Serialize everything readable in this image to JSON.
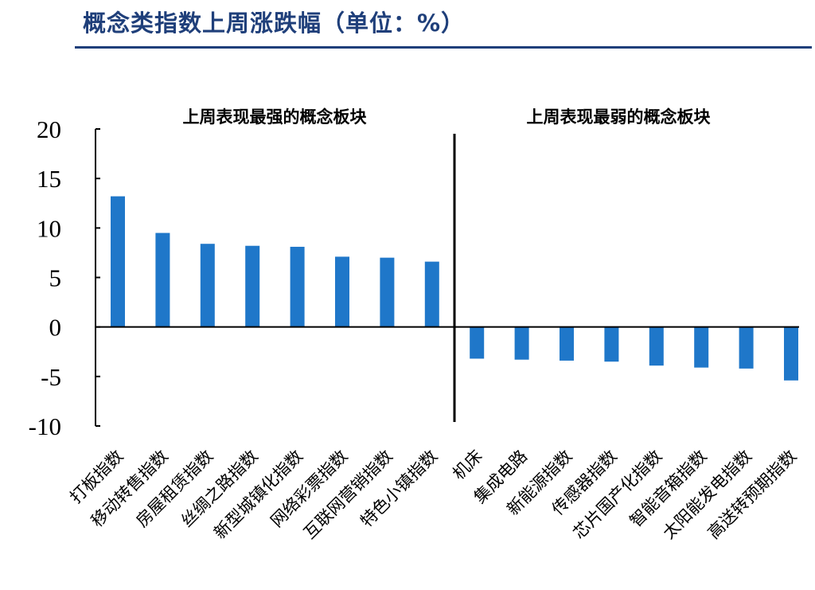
{
  "header": {
    "title": "概念类指数上周涨跌幅（单位：%）"
  },
  "colors": {
    "bar": "#1f77c9",
    "title": "#1f3f7a",
    "axis": "#000000"
  },
  "chart_data": {
    "type": "bar",
    "title": "概念类指数上周涨跌幅（单位：%）",
    "panel_labels": [
      "上周表现最强的概念板块",
      "上周表现最弱的概念板块"
    ],
    "categories": [
      "打板指数",
      "移动转售指数",
      "房屋租赁指数",
      "丝绸之路指数",
      "新型城镇化指数",
      "网络彩票指数",
      "互联网营销指数",
      "特色小镇指数",
      "机床",
      "集成电路",
      "新能源指数",
      "传感器指数",
      "芯片国产化指数",
      "智能音箱指数",
      "太阳能发电指数",
      "高送转预期指数"
    ],
    "values": [
      13.2,
      9.5,
      8.4,
      8.2,
      8.1,
      7.1,
      7.0,
      6.6,
      -3.2,
      -3.3,
      -3.4,
      -3.5,
      -3.9,
      -4.1,
      -4.2,
      -5.4
    ],
    "yticks": [
      20,
      15,
      10,
      5,
      0,
      -5,
      -10
    ],
    "ylim": [
      -10,
      20
    ],
    "xlabel": "",
    "ylabel": "",
    "grid": false
  }
}
